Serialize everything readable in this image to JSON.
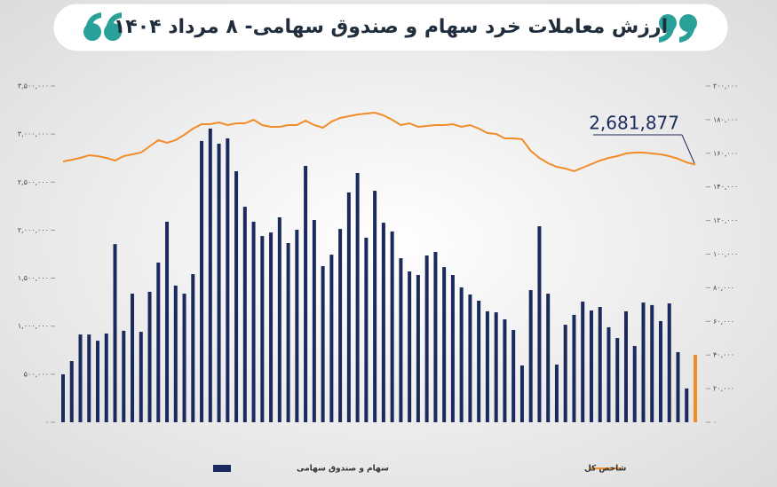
{
  "chart_data": {
    "type": "bar-line",
    "title": "ارزش معاملات خرد سهام و صندوق سهامی- ۸ مرداد ۱۴۰۴",
    "annotation": "2,681,877",
    "ylim": [
      0,
      3500000
    ],
    "yticks": [
      {
        "value": 0,
        "label": "۰"
      },
      {
        "value": 500000,
        "label": "۵۰۰,۰۰۰"
      },
      {
        "value": 1000000,
        "label": "۱,۰۰۰,۰۰۰"
      },
      {
        "value": 1500000,
        "label": "۱,۵۰۰,۰۰۰"
      },
      {
        "value": 2000000,
        "label": "۲,۰۰۰,۰۰۰"
      },
      {
        "value": 2500000,
        "label": "۲,۵۰۰,۰۰۰"
      },
      {
        "value": 3000000,
        "label": "۳,۰۰۰,۰۰۰"
      },
      {
        "value": 3500000,
        "label": "۳,۵۰۰,۰۰۰"
      }
    ],
    "y2lim": [
      0,
      200000
    ],
    "y2ticks": [
      {
        "value": 0,
        "label": "۰"
      },
      {
        "value": 20000,
        "label": "۲۰,۰۰۰"
      },
      {
        "value": 40000,
        "label": "۴۰,۰۰۰"
      },
      {
        "value": 60000,
        "label": "۶۰,۰۰۰"
      },
      {
        "value": 80000,
        "label": "۸۰,۰۰۰"
      },
      {
        "value": 100000,
        "label": "۱۰۰,۰۰۰"
      },
      {
        "value": 120000,
        "label": "۱۲۰,۰۰۰"
      },
      {
        "value": 140000,
        "label": "۱۴۰,۰۰۰"
      },
      {
        "value": 160000,
        "label": "۱۶۰,۰۰۰"
      },
      {
        "value": 180000,
        "label": "۱۸۰,۰۰۰"
      },
      {
        "value": 200000,
        "label": "۲۰۰,۰۰۰"
      }
    ],
    "series": [
      {
        "name": "سهام و صندوق سهامی",
        "type": "bar",
        "axis": "y2",
        "color": "#1b2a5c",
        "last_color": "#f28c28",
        "values": [
          28500,
          36400,
          52200,
          52200,
          48500,
          52800,
          106000,
          54400,
          76500,
          53800,
          77600,
          95000,
          119300,
          81300,
          76500,
          88100,
          167300,
          174700,
          165700,
          168900,
          149300,
          128200,
          119300,
          110800,
          112900,
          121900,
          106600,
          114500,
          152500,
          120300,
          92900,
          99700,
          115000,
          136700,
          148300,
          109800,
          137700,
          118700,
          113500,
          97600,
          89700,
          87600,
          99200,
          101300,
          92300,
          87600,
          80200,
          76000,
          72300,
          66000,
          65400,
          61200,
          54900,
          33800,
          78600,
          116600,
          76500,
          34300,
          58000,
          63900,
          71800,
          66500,
          68600,
          56500,
          50100,
          66000,
          45400,
          71200,
          69700,
          60200,
          70700,
          41700,
          20100,
          40100
        ]
      },
      {
        "name": "شاخص کل",
        "type": "line",
        "axis": "y",
        "color": "#f28c28",
        "values": [
          2715000,
          2733000,
          2752000,
          2780000,
          2770000,
          2752000,
          2724000,
          2770000,
          2789000,
          2807000,
          2872000,
          2937000,
          2909000,
          2937000,
          2992000,
          3057000,
          3103000,
          3103000,
          3121000,
          3094000,
          3112000,
          3112000,
          3149000,
          3094000,
          3075000,
          3075000,
          3094000,
          3094000,
          3140000,
          3094000,
          3066000,
          3131000,
          3168000,
          3186000,
          3204000,
          3214000,
          3223000,
          3195000,
          3149000,
          3094000,
          3112000,
          3075000,
          3084000,
          3094000,
          3094000,
          3103000,
          3075000,
          3094000,
          3057000,
          3011000,
          3001000,
          2955000,
          2955000,
          2946000,
          2826000,
          2752000,
          2697000,
          2660000,
          2641000,
          2613000,
          2650000,
          2687000,
          2724000,
          2752000,
          2770000,
          2798000,
          2807000,
          2807000,
          2798000,
          2789000,
          2770000,
          2743000,
          2706000,
          2681877
        ]
      }
    ]
  }
}
